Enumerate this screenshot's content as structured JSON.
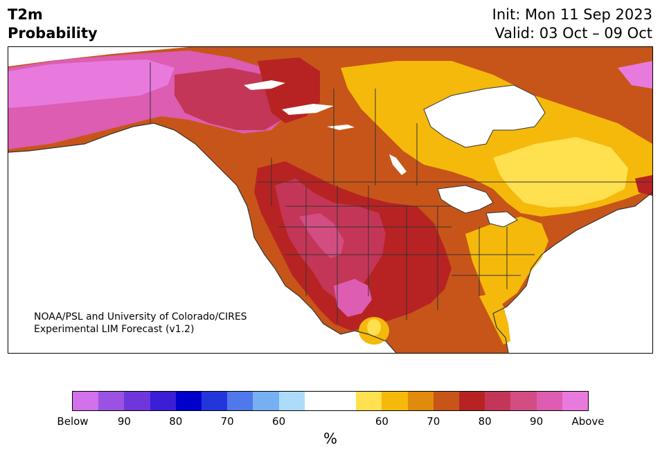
{
  "header": {
    "title_line1": "T2m",
    "title_line2": "Probability",
    "init": "Init: Mon 11 Sep 2023",
    "valid": "Valid: 03 Oct – 09 Oct"
  },
  "credit": {
    "line1": "NOAA/PSL and University of Colorado/CIRES",
    "line2": "Experimental LIM Forecast (v1.2)"
  },
  "colorbar": {
    "colors": [
      "#d171ec",
      "#9b52e3",
      "#6f37db",
      "#3b1ed6",
      "#0000cc",
      "#2336db",
      "#4f78ea",
      "#76b0f3",
      "#addcfb",
      "#ffffff",
      "#ffffff",
      "#ffe04e",
      "#f4b90b",
      "#e08b0b",
      "#c75519",
      "#b72323",
      "#c43657",
      "#d24d82",
      "#dc5db1",
      "#e87ade"
    ],
    "labels": [
      "Below",
      "90",
      "80",
      "70",
      "60",
      "60",
      "70",
      "80",
      "90",
      "Above"
    ],
    "unit": "%"
  },
  "map": {
    "colors": {
      "above_high": "#e87ade",
      "above_90": "#dc5db1",
      "above_85": "#d24d82",
      "above_80": "#c43657",
      "above_75": "#b72323",
      "above_70": "#c75519",
      "above_65": "#e08b0b",
      "above_60": "#f4b90b",
      "above_55": "#ffe04e",
      "neutral": "#ffffff",
      "border": "#333333"
    }
  }
}
